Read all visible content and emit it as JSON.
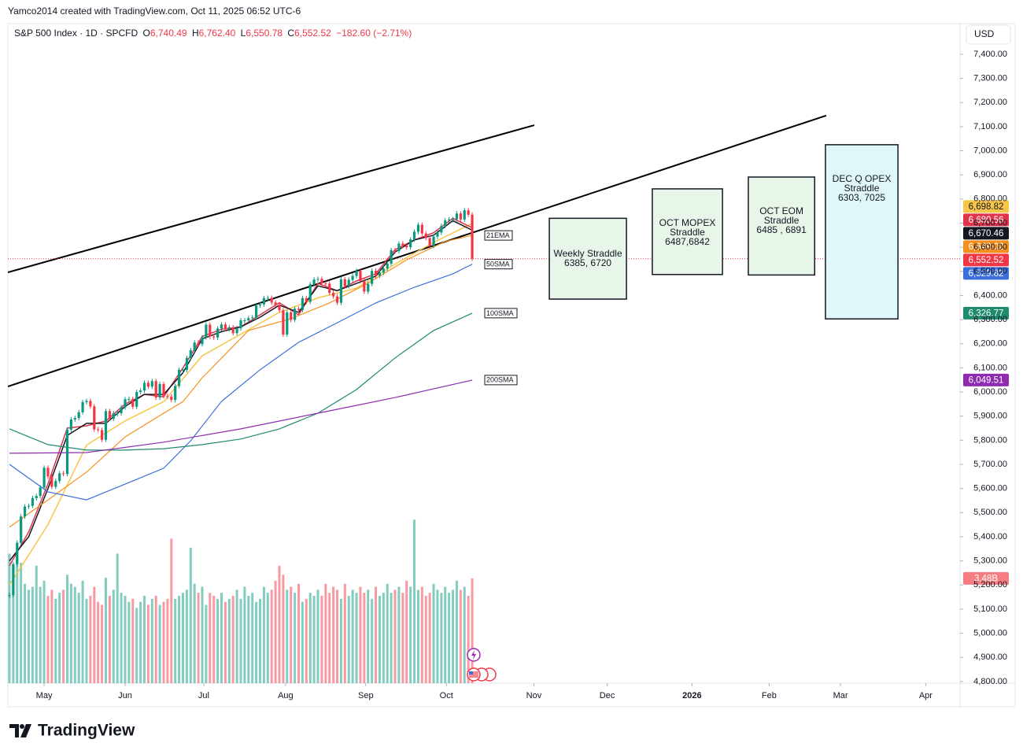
{
  "header": {
    "attribution": "Yamco2014 created with TradingView.com, Oct 11, 2025 06:52 UTC-6",
    "symbol": "S&P 500 Index · 1D · SPCFD",
    "o_label": "O",
    "open": "6,740.49",
    "h_label": "H",
    "high": "6,762.40",
    "l_label": "L",
    "low": "6,550.78",
    "c_label": "C",
    "close": "6,552.52",
    "change": "−182.60 (−2.71%)",
    "currency": "USD"
  },
  "footer": {
    "brand": "TradingView"
  },
  "chart_data": {
    "type": "candlestick",
    "up_color": "#089981",
    "down_color": "#f23645",
    "close": [
      5158,
      5287,
      5375,
      5484,
      5525,
      5528,
      5560,
      5569,
      5604,
      5686,
      5650,
      5607,
      5631,
      5663,
      5660,
      5844,
      5886,
      5892,
      5916,
      5958,
      5963,
      5940,
      5845,
      5842,
      5802,
      5921,
      5889,
      5912,
      5912,
      5936,
      5970,
      5971,
      5939,
      6000,
      6006,
      6038,
      6022,
      6045,
      5977,
      6033,
      5983,
      5981,
      5967,
      6025,
      6092,
      6092,
      6141,
      6173,
      6205,
      6198,
      6227,
      6279,
      6230,
      6226,
      6263,
      6280,
      6260,
      6268,
      6244,
      6264,
      6297,
      6297,
      6306,
      6309,
      6359,
      6363,
      6389,
      6390,
      6371,
      6362,
      6339,
      6238,
      6330,
      6299,
      6345,
      6340,
      6389,
      6374,
      6446,
      6466,
      6469,
      6450,
      6449,
      6411,
      6396,
      6370,
      6467,
      6439,
      6465,
      6481,
      6502,
      6460,
      6416,
      6448,
      6502,
      6482,
      6495,
      6512,
      6532,
      6588,
      6584,
      6615,
      6607,
      6600,
      6632,
      6664,
      6693,
      6657,
      6638,
      6605,
      6644,
      6661,
      6688,
      6711,
      6715,
      6716,
      6740,
      6715,
      6753,
      6735,
      6552.52
    ],
    "volume": [
      4.3,
      3.9,
      4.2,
      4.0,
      3.3,
      3.1,
      3.2,
      3.9,
      3.2,
      3.4,
      2.9,
      3.1,
      2.8,
      3.0,
      3.1,
      3.6,
      3.3,
      3.2,
      3.0,
      3.4,
      2.8,
      2.9,
      3.2,
      2.7,
      2.6,
      3.5,
      2.9,
      3.1,
      4.3,
      3.0,
      2.9,
      2.7,
      2.8,
      2.5,
      2.7,
      2.9,
      2.6,
      2.8,
      2.9,
      2.6,
      2.7,
      2.8,
      4.8,
      2.8,
      2.9,
      3.0,
      3.1,
      4.5,
      3.3,
      3.0,
      3.2,
      2.6,
      3.0,
      2.9,
      2.8,
      3.0,
      2.7,
      2.8,
      2.9,
      3.1,
      2.8,
      3.2,
      2.9,
      3.0,
      2.7,
      2.8,
      3.2,
      3.0,
      3.1,
      3.4,
      3.9,
      3.6,
      3.1,
      3.2,
      3.0,
      3.3,
      2.7,
      2.8,
      3.0,
      2.9,
      3.1,
      2.9,
      3.3,
      3.0,
      3.2,
      3.1,
      2.8,
      3.3,
      2.9,
      3.1,
      3.0,
      3.2,
      3.0,
      3.1,
      2.8,
      3.2,
      2.9,
      3.0,
      3.3,
      3.0,
      3.1,
      3.2,
      3.0,
      3.4,
      3.2,
      5.43,
      3.1,
      3.2,
      2.9,
      3.0,
      3.3,
      3.1,
      3.0,
      3.2,
      3.0,
      3.1,
      3.4,
      3.1,
      3.2,
      2.9,
      3.48
    ],
    "volume_label": "3.48B",
    "volume_lim": [
      0,
      21.9
    ],
    "xlim": [
      -0.4,
      246.5
    ],
    "xticks": [
      {
        "value": 9,
        "label": "May"
      },
      {
        "value": 30,
        "label": "Jun"
      },
      {
        "value": 50.4,
        "label": "Jul"
      },
      {
        "value": 71.6,
        "label": "Aug"
      },
      {
        "value": 92.4,
        "label": "Sep"
      },
      {
        "value": 113.3,
        "label": "Oct"
      },
      {
        "value": 136,
        "label": "Nov"
      },
      {
        "value": 155,
        "label": "Dec"
      },
      {
        "value": 177,
        "label": "2026"
      },
      {
        "value": 197,
        "label": "Feb"
      },
      {
        "value": 215.5,
        "label": "Mar"
      },
      {
        "value": 237.6,
        "label": "Apr"
      }
    ],
    "ylim": [
      4793,
      7527
    ],
    "yticks": [
      {
        "value": 4800,
        "label": "4,800.00"
      },
      {
        "value": 4900,
        "label": "4,900.00"
      },
      {
        "value": 5000,
        "label": "5,000.00"
      },
      {
        "value": 5100,
        "label": "5,100.00"
      },
      {
        "value": 5200,
        "label": "5,200.00"
      },
      {
        "value": 5300,
        "label": "5,300.00"
      },
      {
        "value": 5400,
        "label": "5,400.00"
      },
      {
        "value": 5500,
        "label": "5,500.00"
      },
      {
        "value": 5600,
        "label": "5,600.00"
      },
      {
        "value": 5700,
        "label": "5,700.00"
      },
      {
        "value": 5800,
        "label": "5,800.00"
      },
      {
        "value": 5900,
        "label": "5,900.00"
      },
      {
        "value": 6000,
        "label": "6,000.00"
      },
      {
        "value": 6100,
        "label": "6,100.00"
      },
      {
        "value": 6200,
        "label": "6,200.00"
      },
      {
        "value": 6300,
        "label": "6,300.00"
      },
      {
        "value": 6400,
        "label": "6,400.00"
      },
      {
        "value": 6500,
        "label": "6,500.00"
      },
      {
        "value": 6600,
        "label": "6,600.00"
      },
      {
        "value": 6700,
        "label": "6,700.00"
      },
      {
        "value": 6800,
        "label": "6,800.00"
      },
      {
        "value": 6900,
        "label": "6,900.00"
      },
      {
        "value": 7000,
        "label": "7,000.00"
      },
      {
        "value": 7100,
        "label": "7,100.00"
      },
      {
        "value": 7200,
        "label": "7,200.00"
      },
      {
        "value": 7300,
        "label": "7,300.00"
      },
      {
        "value": 7400,
        "label": "7,400.00"
      }
    ],
    "series": [
      {
        "color": "#f7c548",
        "x": [
          0,
          10,
          20,
          30,
          40,
          50,
          60,
          70,
          80,
          90,
          100,
          110,
          120
        ],
        "values": [
          5200,
          5450,
          5780,
          5880,
          5960,
          6150,
          6240,
          6330,
          6390,
          6430,
          6530,
          6620,
          6698.82
        ],
        "end_label": "6,698.82",
        "tag_text": "#131722"
      },
      {
        "color": "#e0344b",
        "x": [
          0,
          5,
          10,
          15,
          20,
          25,
          30,
          35,
          40,
          45,
          50,
          55,
          60,
          65,
          70,
          75,
          80,
          85,
          90,
          95,
          100,
          105,
          110,
          115,
          120
        ],
        "values": [
          5280,
          5420,
          5620,
          5850,
          5860,
          5880,
          5950,
          5990,
          5980,
          6100,
          6230,
          6260,
          6270,
          6320,
          6370,
          6320,
          6450,
          6420,
          6460,
          6490,
          6590,
          6630,
          6660,
          6720,
          6680.56
        ],
        "end_label": "6,680.56"
      },
      {
        "color": "#131722",
        "x": [
          0,
          5,
          10,
          15,
          20,
          25,
          30,
          35,
          40,
          45,
          50,
          55,
          60,
          65,
          70,
          75,
          80,
          85,
          90,
          95,
          100,
          105,
          110,
          115,
          120
        ],
        "values": [
          5300,
          5400,
          5600,
          5820,
          5870,
          5870,
          5940,
          5990,
          5990,
          6080,
          6220,
          6250,
          6270,
          6310,
          6360,
          6330,
          6440,
          6420,
          6450,
          6480,
          6580,
          6630,
          6650,
          6710,
          6670.46
        ],
        "end_label": "6,670.46"
      },
      {
        "name": "21EMA",
        "color": "#f5901e",
        "x": [
          0,
          10,
          20,
          30,
          40,
          45,
          50,
          62,
          73,
          83,
          93,
          103,
          113,
          120
        ],
        "values": [
          5440,
          5553,
          5668,
          5814,
          5912,
          5960,
          6059,
          6255,
          6304,
          6369,
          6451,
          6548,
          6624,
          6649.02
        ],
        "end_label": "6,649.02"
      },
      {
        "name": "50SMA",
        "color": "#3a6fdc",
        "x": [
          0,
          10,
          20,
          30,
          40,
          47,
          55,
          65,
          75,
          85,
          95,
          105,
          115,
          120
        ],
        "values": [
          5700,
          5586,
          5553,
          5618,
          5684,
          5798,
          5961,
          6092,
          6206,
          6287,
          6369,
          6434,
          6490,
          6529.82
        ],
        "end_label": "6,529.82"
      },
      {
        "name": "100SMA",
        "color": "#1e8a6e",
        "x": [
          0,
          10,
          20,
          30,
          40,
          50,
          60,
          70,
          80,
          90,
          100,
          110,
          120
        ],
        "values": [
          5847,
          5782,
          5759,
          5759,
          5765,
          5782,
          5805,
          5847,
          5912,
          6010,
          6141,
          6255,
          6326.77
        ],
        "end_label": "6,326.77"
      },
      {
        "name": "200SMA",
        "color": "#8e2bb0",
        "x": [
          0,
          20,
          40,
          60,
          80,
          100,
          120
        ],
        "values": [
          5746,
          5749,
          5792,
          5847,
          5912,
          5977,
          6049.51
        ],
        "end_label": "6,049.51"
      }
    ],
    "trendlines": [
      {
        "color": "#000000",
        "x": [
          -0.4,
          136.1
        ],
        "values": [
          6496,
          7106
        ]
      },
      {
        "color": "#000000",
        "x": [
          -0.4,
          211.8
        ],
        "values": [
          6023,
          7146
        ]
      }
    ],
    "boxes": [
      {
        "lines": [
          "Weekly Straddle",
          "6385, 6720"
        ],
        "x": [
          140,
          160
        ],
        "values": [
          6385,
          6720
        ],
        "color": "#e8f5e9"
      },
      {
        "lines": [
          "OCT MOPEX",
          "Straddle",
          "6487,6842"
        ],
        "x": [
          166.7,
          184.9
        ],
        "values": [
          6487,
          6842
        ],
        "color": "#e8f5e9"
      },
      {
        "lines": [
          "OCT EOM",
          "Straddle",
          "6485 , 6891"
        ],
        "x": [
          191.6,
          208.8
        ],
        "values": [
          6485,
          6891
        ],
        "color": "#e8f5e9"
      },
      {
        "lines": [
          "DEC Q OPEX",
          "Straddle",
          "6303, 7025"
        ],
        "x": [
          211.6,
          230.4
        ],
        "values": [
          6303,
          7025
        ],
        "color": "#e0f7fa"
      }
    ]
  }
}
